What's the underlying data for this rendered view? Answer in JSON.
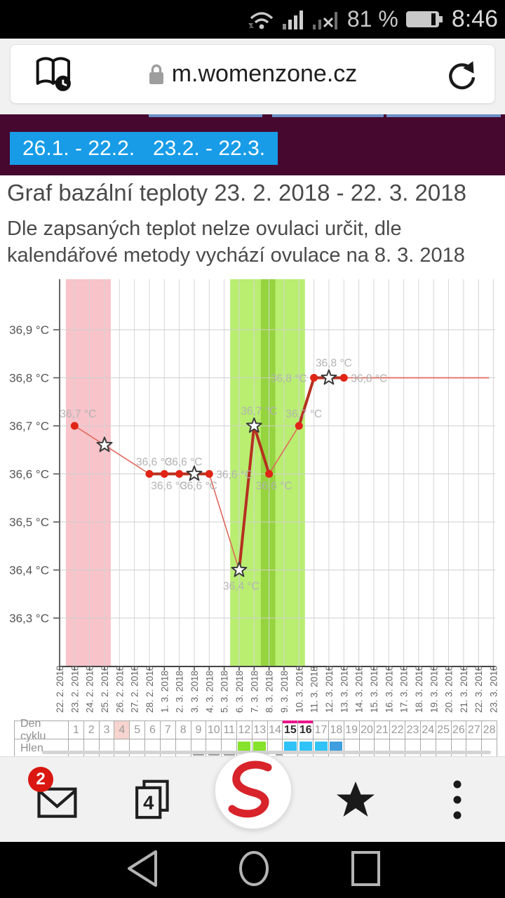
{
  "status_bar": {
    "battery_percent": "81 %",
    "time": "8:46"
  },
  "browser": {
    "url": "m.womenzone.cz",
    "tab_count": "4",
    "mail_badge": "2"
  },
  "range_buttons": [
    {
      "label": "26.1. - 22.2."
    },
    {
      "label": "23.2. - 22.3."
    }
  ],
  "heading": "Graf bazální teploty 23. 2. 2018 - 22. 3. 2018",
  "subtitle": "Dle zapsaných teplot nelze ovulaci určit, dle kalendářové metody vychází ovulace na 8. 3. 2018",
  "chart_data": {
    "type": "line",
    "title": "Graf bazální teploty 23. 2. 2018 - 22. 3. 2018",
    "ylim": [
      36.2,
      37.0
    ],
    "grid": true,
    "y_ticks": [
      {
        "v": 36.3,
        "label": "36,3 °C"
      },
      {
        "v": 36.4,
        "label": "36,4 °C"
      },
      {
        "v": 36.5,
        "label": "36,5 °C"
      },
      {
        "v": 36.6,
        "label": "36,6 °C"
      },
      {
        "v": 36.7,
        "label": "36,7 °C"
      },
      {
        "v": 36.8,
        "label": "36,8 °C"
      },
      {
        "v": 36.9,
        "label": "36,9 °C"
      }
    ],
    "x_dates": [
      "22. 2. 2018",
      "23. 2. 2018",
      "24. 2. 2018",
      "25. 2. 2018",
      "26. 2. 2018",
      "27. 2. 2018",
      "28. 2. 2018",
      "1. 3. 2018",
      "2. 3. 2018",
      "3. 3. 2018",
      "4. 3. 2018",
      "5. 3. 2018",
      "6. 3. 2018",
      "7. 3. 2018",
      "8. 3. 2018",
      "9. 3. 2018",
      "10. 3. 2018",
      "11. 3. 2018",
      "12. 3. 2018",
      "13. 3. 2018",
      "14. 3. 2018",
      "15. 3. 2018",
      "16. 3. 2018",
      "17. 3. 2018",
      "18. 3. 2018",
      "19. 3. 2018",
      "20. 3. 2018",
      "21. 3. 2018",
      "22. 3. 2018",
      "23. 3. 2018"
    ],
    "points": [
      {
        "i": 1,
        "t": 36.7,
        "m": "dot",
        "lbl": "36,7 °C",
        "lp": "al"
      },
      {
        "i": 3,
        "t": 36.66,
        "m": "star"
      },
      {
        "i": 6,
        "t": 36.6,
        "m": "dot",
        "lbl": "36,6 °C",
        "lp": "a"
      },
      {
        "i": 7,
        "t": 36.6,
        "m": "dot",
        "lbl": "36,6 °C",
        "lp": "b"
      },
      {
        "i": 8,
        "t": 36.6,
        "m": "dot",
        "lbl": "36,6 °C",
        "lp": "a"
      },
      {
        "i": 9,
        "t": 36.6,
        "m": "star",
        "lbl": "36,6 °C",
        "lp": "b"
      },
      {
        "i": 10,
        "t": 36.6,
        "m": "dot",
        "lbl": "36,6 °C",
        "lp": "r"
      },
      {
        "i": 12,
        "t": 36.4,
        "m": "star",
        "lbl": "36,4 °C",
        "lp": "bs"
      },
      {
        "i": 13,
        "t": 36.7,
        "m": "star",
        "lbl": "36,7 °C",
        "lp": "as"
      },
      {
        "i": 14,
        "t": 36.6,
        "m": "dot",
        "lbl": "36,6 °C",
        "lp": "b"
      },
      {
        "i": 16,
        "t": 36.7,
        "m": "dot",
        "lbl": "36,7 °C",
        "lp": "a"
      },
      {
        "i": 17,
        "t": 36.8,
        "m": "dot",
        "lbl": "36,8 °C",
        "lp": "l"
      },
      {
        "i": 18,
        "t": 36.8,
        "m": "star",
        "lbl": "36,8 °C",
        "lp": "as"
      },
      {
        "i": 19,
        "t": 36.8,
        "m": "dot",
        "lbl": "36,8 °C",
        "lp": "r"
      }
    ],
    "tail": {
      "from_index": 19,
      "to_index": 28.7,
      "temp": 36.8
    },
    "bands": [
      {
        "from": 0.42,
        "to": 3.42,
        "color": "#f8c3c9",
        "name": "menstruation"
      },
      {
        "from": 11.4,
        "to": 16.4,
        "color": "#b9ee71",
        "name": "fertile-window"
      },
      {
        "from": 13.45,
        "to": 14.42,
        "color": "#95d43f",
        "name": "predicted-ovulation"
      }
    ],
    "colors": {
      "measured_line": "#b5311f",
      "interpolated_line": "#e0685c",
      "marker": "#e02416"
    }
  },
  "cycle_table": {
    "row1_label": "Den cyklu",
    "row2_label": "Hlen",
    "days": [
      1,
      2,
      3,
      4,
      5,
      6,
      7,
      8,
      9,
      10,
      11,
      12,
      13,
      14,
      15,
      16,
      17,
      18,
      19,
      20,
      21,
      22,
      23,
      24,
      25,
      26,
      27,
      28
    ],
    "highlight_day": 4,
    "bold_marked_days": [
      15,
      16
    ],
    "mucus": {
      "9": "dash",
      "10": "dash",
      "11": "dash",
      "12": "green",
      "13": "green",
      "14": "dash_small",
      "15": "cyan",
      "16": "cyan",
      "17": "cyan",
      "18": "blue"
    },
    "marker_colors": {
      "green": "#86e22b",
      "cyan": "#2fc3f7",
      "blue": "#3f9edd"
    }
  }
}
